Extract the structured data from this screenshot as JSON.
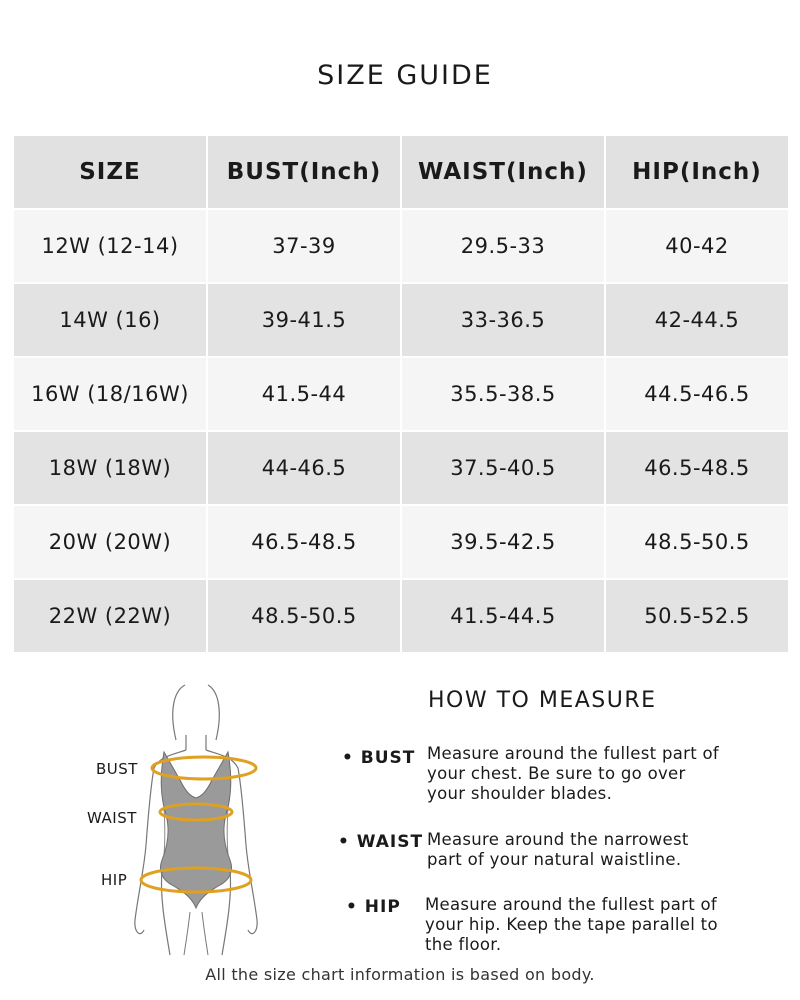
{
  "title": "SIZE GUIDE",
  "table": {
    "headers": [
      "SIZE",
      "BUST(Inch)",
      "WAIST(Inch)",
      "HIP(Inch)"
    ],
    "rows": [
      [
        "12W (12-14)",
        "37-39",
        "29.5-33",
        "40-42"
      ],
      [
        "14W (16)",
        "39-41.5",
        "33-36.5",
        "42-44.5"
      ],
      [
        "16W (18/16W)",
        "41.5-44",
        "35.5-38.5",
        "44.5-46.5"
      ],
      [
        "18W (18W)",
        "44-46.5",
        "37.5-40.5",
        "46.5-48.5"
      ],
      [
        "20W (20W)",
        "46.5-48.5",
        "39.5-42.5",
        "48.5-50.5"
      ],
      [
        "22W (22W)",
        "48.5-50.5",
        "41.5-44.5",
        "50.5-52.5"
      ]
    ]
  },
  "figure_labels": {
    "bust": "BUST",
    "waist": "WAIST",
    "hip": "HIP"
  },
  "how_to_measure": {
    "title": "HOW TO MEASURE",
    "items": [
      {
        "key": "• BUST",
        "text": "Measure around the fullest part of your chest. Be sure to go over your shoulder blades."
      },
      {
        "key": "• WAIST",
        "text": "Measure around the narrowest part of your natural waistline."
      },
      {
        "key": "• HIP",
        "text": "Measure around the fullest part of your hip. Keep the tape parallel to the floor."
      }
    ]
  },
  "footer": "All the size chart information is based on body.",
  "colors": {
    "header_bg": "#e1e1e1",
    "row_light": "#f5f5f5",
    "row_dark": "#e3e3e3",
    "tape": "#e0a020",
    "body": "#9a9a9a"
  }
}
